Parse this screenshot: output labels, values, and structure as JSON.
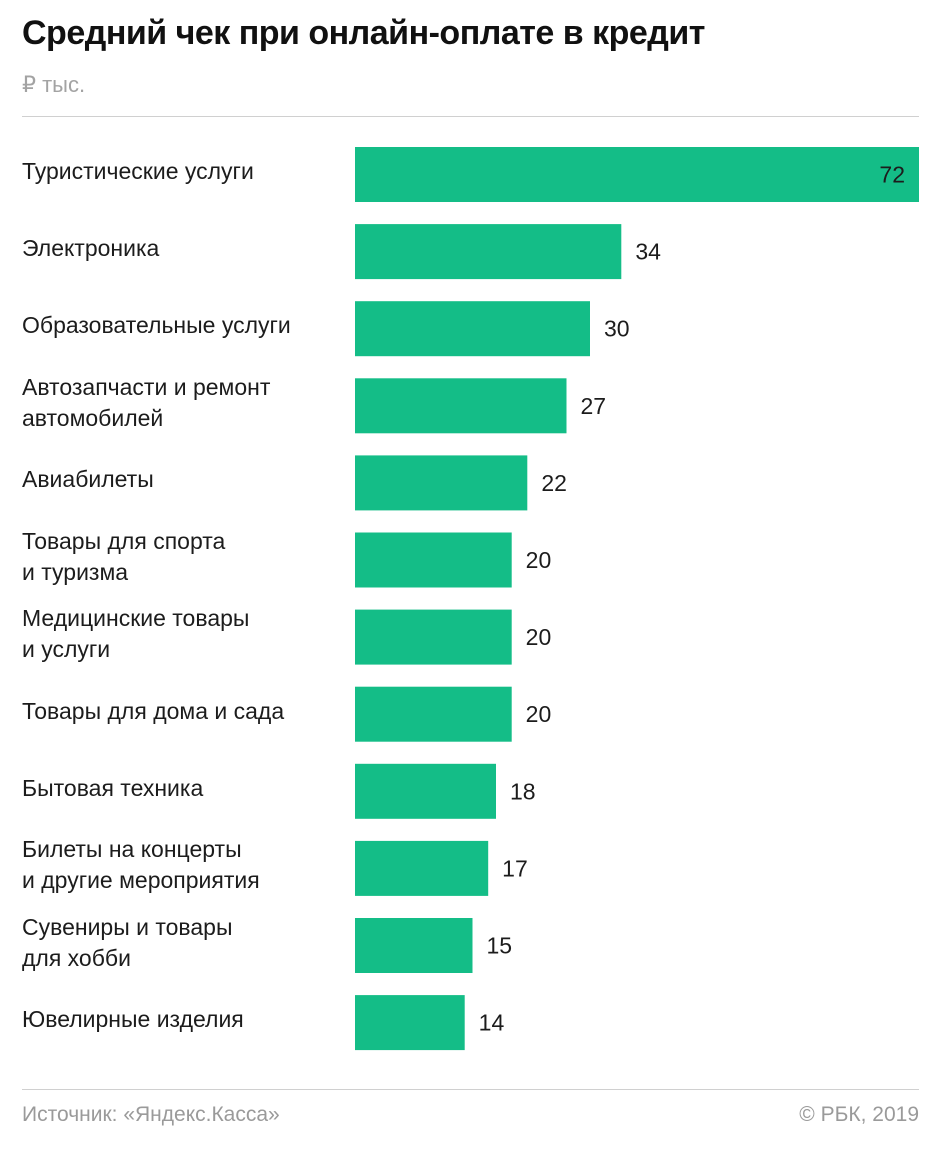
{
  "title": "Средний чек при онлайн-оплате в кредит",
  "unit": "₽ тыс.",
  "footer": {
    "source": "Источник: «Яндекс.Касса»",
    "copyright": "© РБК, 2019"
  },
  "colors": {
    "bar": "#14bd87",
    "text": "#1c1c1c",
    "muted": "#9a9a9a"
  },
  "chart_data": {
    "type": "bar",
    "orientation": "horizontal",
    "categories": [
      [
        "Туристические услуги"
      ],
      [
        "Электроника"
      ],
      [
        "Образовательные услуги"
      ],
      [
        "Автозапчасти и ремонт",
        "автомобилей"
      ],
      [
        "Авиабилеты"
      ],
      [
        "Товары для спорта",
        "и туризма"
      ],
      [
        "Медицинские товары",
        "и услуги"
      ],
      [
        "Товары для дома и сада"
      ],
      [
        "Бытовая техника"
      ],
      [
        "Билеты на концерты",
        "и другие мероприятия"
      ],
      [
        "Сувениры и товары",
        "для хобби"
      ],
      [
        "Ювелирные изделия"
      ]
    ],
    "values": [
      72,
      34,
      30,
      27,
      22,
      20,
      20,
      20,
      18,
      17,
      15,
      14
    ],
    "xlim": [
      0,
      72
    ],
    "grid": false,
    "legend": "none",
    "data_labels": true
  }
}
